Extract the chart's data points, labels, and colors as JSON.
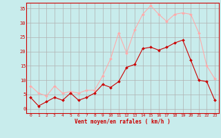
{
  "x": [
    0,
    1,
    2,
    3,
    4,
    5,
    6,
    7,
    8,
    9,
    10,
    11,
    12,
    13,
    14,
    15,
    16,
    17,
    18,
    19,
    20,
    21,
    22,
    23
  ],
  "wind_avg": [
    4,
    1,
    2.5,
    4,
    3,
    5.5,
    3,
    4,
    5.5,
    8.5,
    7.5,
    9.5,
    14.5,
    15.5,
    21,
    21.5,
    20.5,
    21.5,
    23,
    24,
    17,
    10,
    9.5,
    3
  ],
  "wind_gust": [
    8,
    5.5,
    4.5,
    8,
    5.5,
    6,
    5.5,
    6.5,
    6.5,
    11.5,
    17.5,
    26.5,
    19.5,
    27.5,
    33,
    36,
    33,
    30.5,
    33,
    33.5,
    33,
    26.5,
    15,
    10.5
  ],
  "avg_color": "#cc0000",
  "gust_color": "#ffaaaa",
  "bg_color": "#c8ecec",
  "grid_color": "#b0b0b0",
  "xlabel": "Vent moyen/en rafales ( km/h )",
  "ylabel_ticks": [
    0,
    5,
    10,
    15,
    20,
    25,
    30,
    35
  ],
  "ylim": [
    -1.5,
    37
  ],
  "xlim": [
    -0.5,
    23.5
  ]
}
